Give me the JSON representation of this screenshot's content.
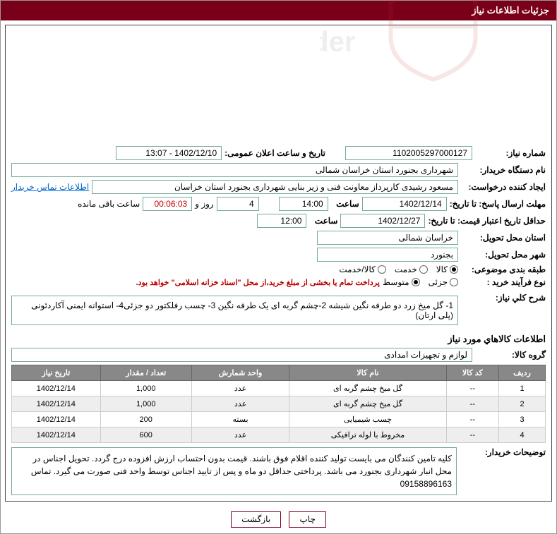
{
  "title": "جزئیات اطلاعات نیاز",
  "labels": {
    "need_number": "شماره نیاز:",
    "announce_dt": "تاریخ و ساعت اعلان عمومی:",
    "buyer_org": "نام دستگاه خریدار:",
    "requester": "ایجاد کننده درخواست:",
    "contact_link": "اطلاعات تماس خریدار",
    "reply_deadline": "مهلت ارسال پاسخ: تا تاریخ:",
    "time": "ساعت",
    "days_and": "روز و",
    "remaining": "ساعت باقی مانده",
    "price_validity": "حداقل تاریخ اعتبار قیمت: تا تاریخ:",
    "delivery_province": "استان محل تحویل:",
    "delivery_city": "شهر محل تحویل:",
    "category": "طبقه بندی موضوعی:",
    "purchase_type": "نوع فرآیند خرید :",
    "payment_note": "پرداخت تمام یا بخشی از مبلغ خرید،از محل \"اسناد خزانه اسلامی\" خواهد بود.",
    "need_desc": "شرح کلي نياز:",
    "items_section": "اطلاعات کالاهاي مورد نياز",
    "item_group": "گروه کالا:",
    "buyer_notes": "توضیحات خریدار:",
    "col_row": "ردیف",
    "col_code": "کد کالا",
    "col_name": "نام کالا",
    "col_unit": "واحد شمارش",
    "col_qty": "تعداد / مقدار",
    "col_date": "تاریخ نیاز"
  },
  "fields": {
    "need_number": "1102005297000127",
    "announce_dt": "1402/12/10 - 13:07",
    "buyer_org": "شهرداری بجنورد استان خراسان شمالی",
    "requester": "مسعود رشیدی کارپرداز معاونت فنی و زیر بنایی شهرداری بجنورد استان خراسان",
    "reply_date": "1402/12/14",
    "reply_time": "14:00",
    "remaining_days": "4",
    "remaining_time": "00:06:03",
    "price_date": "1402/12/27",
    "price_time": "12:00",
    "province": "خراسان شمالی",
    "city": "بجنورد",
    "need_desc": "1- گل میخ زرد دو طرفه نگین شیشه 2-چشم گربه ای یک طرفه نگین 3- چسب رفلکتور دو جزئی4- استوانه ایمنی آکاردئونی (پلی ارتان)",
    "item_group": "لوازم و تجهیزات امدادی",
    "buyer_notes": "کلیه تامین کنندگان می بایست تولید کننده اقلام فوق باشند. قیمت بدون احتساب ارزش افزوده درج گردد. تحویل اجناس در محل انبار شهرداری بجنورد می باشد. پرداختی حداقل دو ماه و پس از تایید اجناس توسط واحد فنی صورت می گیرد. تماس 09158896163"
  },
  "category_options": [
    "کالا",
    "خدمت",
    "کالا/خدمت"
  ],
  "category_selected": 0,
  "purchase_options": [
    "جزئی",
    "متوسط"
  ],
  "purchase_selected": 1,
  "items": [
    {
      "row": "1",
      "code": "--",
      "name": "گل میخ چشم گربه ای",
      "unit": "عدد",
      "qty": "1,000",
      "date": "1402/12/14"
    },
    {
      "row": "2",
      "code": "--",
      "name": "گل میخ چشم گربه ای",
      "unit": "عدد",
      "qty": "1,000",
      "date": "1402/12/14"
    },
    {
      "row": "3",
      "code": "--",
      "name": "چسب شیمیایی",
      "unit": "بسته",
      "qty": "200",
      "date": "1402/12/14"
    },
    {
      "row": "4",
      "code": "--",
      "name": "مخروط با لوله ترافیکی",
      "unit": "عدد",
      "qty": "600",
      "date": "1402/12/14"
    }
  ],
  "buttons": {
    "print": "چاپ",
    "back": "بازگشت"
  },
  "colors": {
    "header_bg": "#7a0019",
    "border": "#7a9",
    "table_header": "#888888",
    "alt_row": "#eeeeee"
  }
}
